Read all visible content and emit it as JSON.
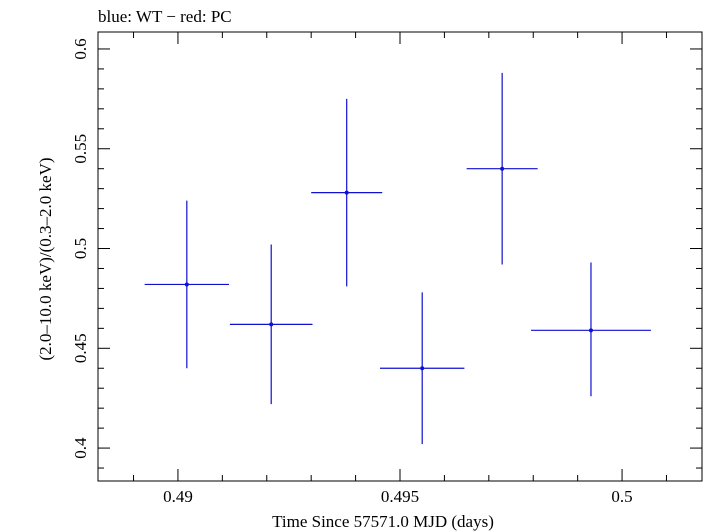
{
  "chart_data": {
    "type": "scatter",
    "title": "blue: WT − red: PC",
    "xlabel": "Time Since 57571.0 MJD (days)",
    "ylabel": "(2.0–10.0 keV)/(0.3–2.0 keV)",
    "xlim": [
      0.4882,
      0.5018
    ],
    "ylim": [
      0.3835,
      0.6085
    ],
    "xticks": [
      "0.49",
      "0.495",
      "0.5"
    ],
    "yticks": [
      "0.4",
      "0.45",
      "0.5",
      "0.55",
      "0.6"
    ],
    "grid": false,
    "series": [
      {
        "color": "#1010d0",
        "points": [
          {
            "x": 0.4902,
            "y": 0.482,
            "xerr": 0.00095,
            "yerr_lo": 0.042,
            "yerr_hi": 0.042
          },
          {
            "x": 0.4921,
            "y": 0.462,
            "xerr": 0.00093,
            "yerr_lo": 0.04,
            "yerr_hi": 0.04
          },
          {
            "x": 0.4938,
            "y": 0.528,
            "xerr": 0.0008,
            "yerr_lo": 0.047,
            "yerr_hi": 0.047
          },
          {
            "x": 0.4955,
            "y": 0.44,
            "xerr": 0.00095,
            "yerr_lo": 0.038,
            "yerr_hi": 0.038
          },
          {
            "x": 0.4973,
            "y": 0.54,
            "xerr": 0.0008,
            "yerr_lo": 0.048,
            "yerr_hi": 0.048
          },
          {
            "x": 0.4993,
            "y": 0.459,
            "xerr": 0.00135,
            "yerr_lo": 0.033,
            "yerr_hi": 0.034
          }
        ]
      }
    ]
  }
}
